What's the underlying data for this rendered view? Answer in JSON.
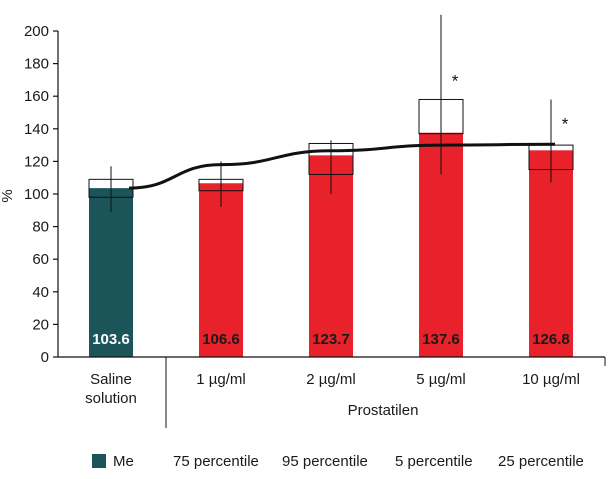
{
  "chart_data": {
    "type": "bar",
    "ylabel": "%",
    "ylim": [
      0,
      200
    ],
    "yticks": [
      "0",
      "20",
      "40",
      "60",
      "80",
      "100",
      "120",
      "140",
      "160",
      "180",
      "200"
    ],
    "categories": [
      "Saline solution",
      "1 µg/ml",
      "2 µg/ml",
      "5 µg/ml",
      "10 µg/ml"
    ],
    "category_lines": [
      [
        "Saline",
        "solution"
      ],
      [
        "1 µg/ml"
      ],
      [
        "2 µg/ml"
      ],
      [
        "5 µg/ml"
      ],
      [
        "10 µg/ml"
      ]
    ],
    "group_label": "Prostatilen",
    "series": [
      {
        "name": "Me",
        "values": [
          103.6,
          106.6,
          123.7,
          137.6,
          126.8
        ]
      },
      {
        "name": "75 percentile",
        "values": [
          109,
          109,
          131,
          158,
          130
        ]
      },
      {
        "name": "95 percentile",
        "values": [
          117,
          120,
          133,
          210,
          158
        ]
      },
      {
        "name": "5 percentile",
        "values": [
          89,
          92,
          100,
          112,
          107
        ]
      },
      {
        "name": "25 percentile",
        "values": [
          98,
          102,
          112,
          137,
          115
        ]
      }
    ],
    "value_labels": [
      "103.6",
      "106.6",
      "123.7",
      "137.6",
      "126.8"
    ],
    "significance_markers": [
      "",
      "",
      "",
      "*",
      "*"
    ],
    "trend_line": "fitted curve through medians",
    "colors": {
      "control": "#1b5459",
      "treatment": "#e8212b",
      "outline": "#111111"
    },
    "legend": [
      {
        "label": "Me",
        "swatch": true
      },
      {
        "label": "75 percentile"
      },
      {
        "label": "95 percentile"
      },
      {
        "label": "5 percentile"
      },
      {
        "label": "25 percentile"
      }
    ]
  }
}
